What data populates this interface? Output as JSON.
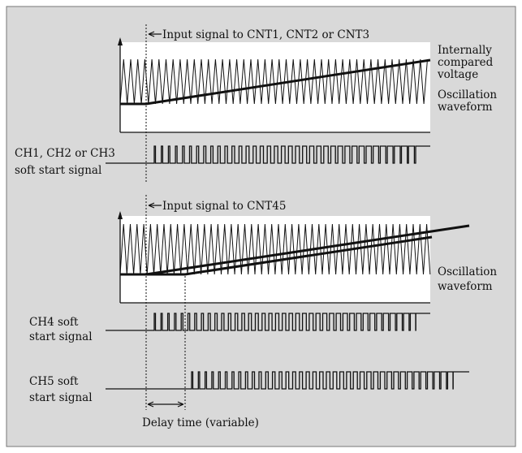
{
  "colors": {
    "background": "#d9d9d9",
    "frame": "#777777",
    "plot_background": "#ffffff",
    "stroke": "#111111"
  },
  "labels": {
    "input_cnt123": "Input signal to CNT1, CNT2 or CNT3",
    "internally": "Internally",
    "compared": "compared",
    "voltage": "voltage",
    "oscillation_1": "Oscillation",
    "waveform_1": "waveform",
    "ch123_line1": "CH1, CH2 or CH3",
    "ch123_line2": "soft start signal",
    "input_cnt45": "Input signal to CNT45",
    "oscillation_2": "Oscillation",
    "waveform_2": "waveform",
    "ch4_line1": "CH4 soft",
    "ch4_line2": "start signal",
    "ch5_line1": "CH5 soft",
    "ch5_line2": "start signal",
    "delay": "Delay time (variable)"
  },
  "icons": {
    "input_arrow": "left-arrow-icon",
    "delay_arrow": "double-arrow-icon"
  }
}
